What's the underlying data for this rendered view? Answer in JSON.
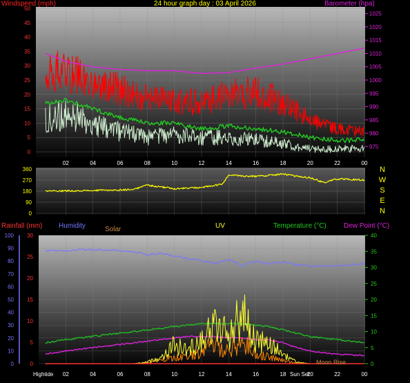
{
  "title": "24 hour graph day : 03 April 2026",
  "colors": {
    "windspeed": "#ff0000",
    "wind_avg": "#22cc22",
    "wind_low": "#cfeecf",
    "barometer": "#dd22dd",
    "direction": "#ffff00",
    "humidity": "#7777ff",
    "solar": "#ff8800",
    "uv": "#ffff33",
    "temperature": "#22bb22",
    "dewpoint": "#dd22dd",
    "rainfall": "#ff3333"
  },
  "x_ticks": [
    "02",
    "04",
    "06",
    "08",
    "10",
    "12",
    "14",
    "16",
    "18",
    "20",
    "22",
    "00"
  ],
  "chart_data": [
    {
      "type": "line",
      "name": "wind-and-pressure",
      "left_axis": {
        "label": "Windspeed (mph)",
        "ticks": [
          0,
          5,
          10,
          15,
          20,
          25,
          30,
          35,
          40,
          45,
          50
        ],
        "ylim": [
          0,
          50
        ]
      },
      "right_axis": {
        "label": "Barometer (hpa)",
        "ticks": [
          975,
          980,
          985,
          990,
          995,
          1000,
          1005,
          1010,
          1015,
          1020,
          1025
        ],
        "ylim": [
          973,
          1027
        ]
      },
      "x": [
        "00:30",
        "02:00",
        "04:00",
        "06:00",
        "08:00",
        "10:00",
        "12:00",
        "14:00",
        "16:00",
        "18:00",
        "20:00",
        "22:00",
        "23:59"
      ],
      "series": [
        {
          "key": "gust",
          "values": [
            28,
            28,
            24,
            22,
            19,
            18,
            17,
            20,
            21,
            17,
            11,
            8,
            7
          ]
        },
        {
          "key": "avg",
          "values": [
            17,
            18,
            15,
            12,
            10,
            10,
            8,
            9,
            8,
            7,
            5,
            4,
            4
          ]
        },
        {
          "key": "low",
          "values": [
            11,
            13,
            10,
            7,
            5,
            6,
            5,
            5,
            4,
            3,
            1,
            1,
            1
          ]
        },
        {
          "key": "baro",
          "axis": "right",
          "values": [
            1010,
            1007,
            1005,
            1004,
            1003.5,
            1003.5,
            1002.5,
            1002.8,
            1004.5,
            1006,
            1008,
            1010,
            1012
          ]
        }
      ]
    },
    {
      "type": "line",
      "name": "wind-direction",
      "left_ticks": [
        360,
        270,
        180,
        90,
        0
      ],
      "ylim": [
        0,
        360
      ],
      "right_labels": [
        "N",
        "W",
        "S",
        "E",
        "N"
      ],
      "x": [
        "00:30",
        "04:00",
        "06:00",
        "07:00",
        "08:00",
        "10:00",
        "12:00",
        "13:30",
        "14:00",
        "16:00",
        "18:00",
        "19:00",
        "20:00",
        "21:00",
        "22:00",
        "23:59"
      ],
      "values": [
        180,
        185,
        190,
        195,
        230,
        200,
        210,
        235,
        310,
        300,
        320,
        300,
        290,
        250,
        280,
        270
      ]
    },
    {
      "type": "line",
      "name": "weather-conditions",
      "labels": {
        "rainfall": "Rainfall (mm)",
        "humidity": "Humidity",
        "solar": "Solar",
        "uv": "UV",
        "temperature": "Temperature (°C)",
        "dewpoint": "Dew Point (°C)"
      },
      "axes": {
        "humidity_ticks": [
          0,
          10,
          20,
          30,
          40,
          50,
          60,
          70,
          80,
          90,
          100
        ],
        "rainfall_ticks": [
          0,
          5,
          10,
          15,
          20,
          25,
          30
        ],
        "temperature_ticks": [
          0,
          5,
          10,
          15,
          20,
          25,
          30,
          35,
          40
        ]
      },
      "x": [
        "00:30",
        "02:00",
        "04:00",
        "06:00",
        "07:00",
        "08:00",
        "09:00",
        "10:00",
        "11:00",
        "12:00",
        "13:00",
        "14:00",
        "15:00",
        "16:00",
        "17:00",
        "18:00",
        "19:00",
        "20:00",
        "22:00",
        "23:59"
      ],
      "series": [
        {
          "key": "humidity",
          "values": [
            88,
            88,
            89,
            88,
            87,
            85,
            86,
            84,
            82,
            80,
            78,
            81,
            76,
            80,
            78,
            79,
            77,
            76,
            76,
            78
          ]
        },
        {
          "key": "temperature",
          "values": [
            6.5,
            7.5,
            8.5,
            9.5,
            10,
            10.5,
            11,
            11.5,
            12,
            12.5,
            12.5,
            12.5,
            12.5,
            12,
            11.5,
            10.5,
            9.5,
            8.5,
            7.5,
            6.5
          ]
        },
        {
          "key": "dewpoint",
          "values": [
            3,
            4,
            5,
            6,
            6.5,
            7,
            7.5,
            8,
            8.5,
            8.5,
            8.5,
            8,
            8,
            7.5,
            7.5,
            6.5,
            5,
            4,
            3,
            2.5
          ]
        },
        {
          "key": "uv",
          "values": [
            0,
            0,
            0,
            0,
            0,
            0.5,
            2,
            6,
            4,
            8,
            12,
            9,
            16,
            7,
            6,
            3,
            0.5,
            0,
            0,
            0
          ]
        },
        {
          "key": "solar",
          "values": [
            0,
            0,
            0,
            0,
            0,
            0.3,
            1,
            2,
            2,
            4,
            6,
            4,
            7,
            3,
            2,
            1,
            0.2,
            0,
            0,
            0
          ]
        }
      ],
      "rainfall": [
        0,
        0,
        0,
        0,
        0,
        0,
        0,
        0,
        0,
        0,
        0,
        0,
        0,
        0,
        0,
        0,
        0,
        0,
        0,
        0
      ],
      "annotations": [
        "Hightide",
        "Sun Set",
        "Moon Rise"
      ]
    }
  ]
}
